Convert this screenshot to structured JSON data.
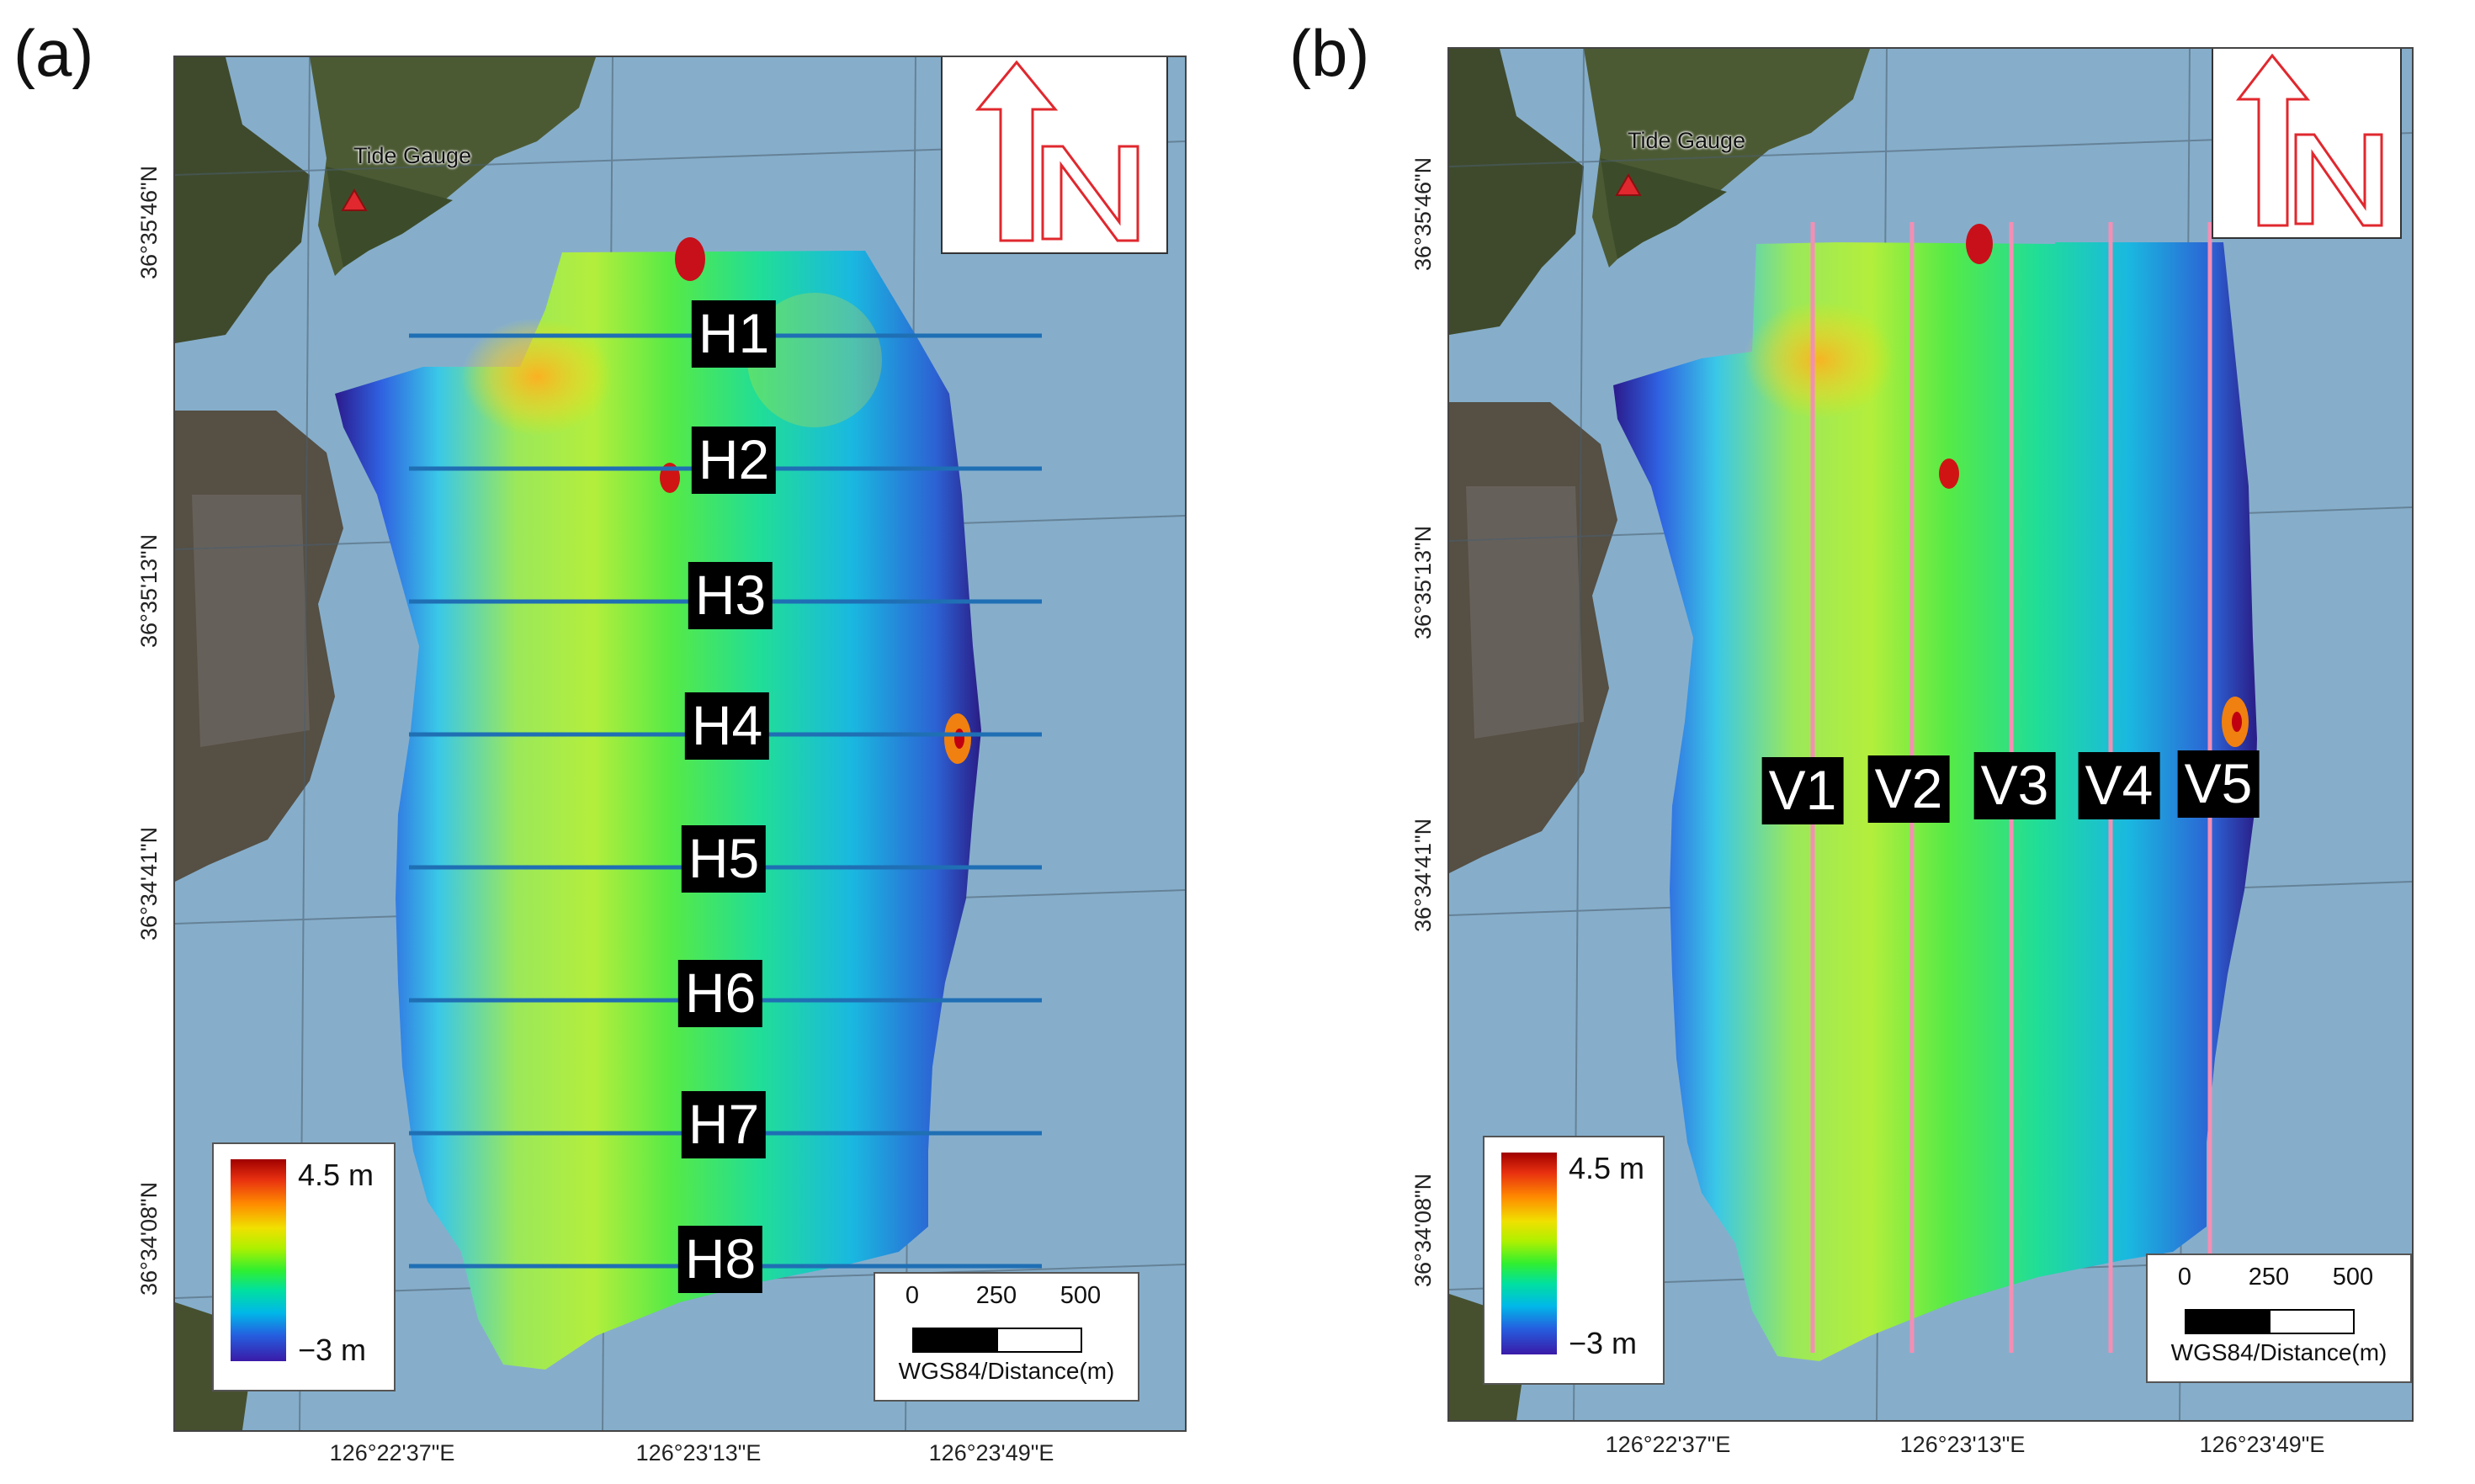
{
  "panels": [
    {
      "letter": "(a)",
      "tide_gauge": "Tide Gauge",
      "lat_labels": [
        "36°35'46\"N",
        "36°35'13\"N",
        "36°34'41\"N",
        "36°34'08\"N"
      ],
      "lon_labels": [
        "126°22'37\"E",
        "126°23'13\"E",
        "126°23'49\"E"
      ],
      "profile_labels": [
        "H1",
        "H2",
        "H3",
        "H4",
        "H5",
        "H6",
        "H7",
        "H8"
      ],
      "profile_color": "#1f6fb4",
      "legend": {
        "max": "4.5 m",
        "min": "−3 m"
      },
      "scale": {
        "ticks": [
          "0",
          "250",
          "500"
        ],
        "caption": "WGS84/Distance(m)"
      }
    },
    {
      "letter": "(b)",
      "tide_gauge": "Tide Gauge",
      "lat_labels": [
        "36°35'46\"N",
        "36°35'13\"N",
        "36°34'41\"N",
        "36°34'08\"N"
      ],
      "lon_labels": [
        "126°22'37\"E",
        "126°23'13\"E",
        "126°23'49\"E"
      ],
      "profile_labels": [
        "V1",
        "V2",
        "V3",
        "V4",
        "V5"
      ],
      "profile_color": "#f48fb4",
      "legend": {
        "max": "4.5 m",
        "min": "−3 m"
      },
      "scale": {
        "ticks": [
          "0",
          "250",
          "500"
        ],
        "caption": "WGS84/Distance(m)"
      }
    }
  ],
  "colors": {
    "water": "#86aecb",
    "tide_marker": "#e0282e",
    "north_arrow": "#e0282e"
  },
  "north_letter": "N"
}
